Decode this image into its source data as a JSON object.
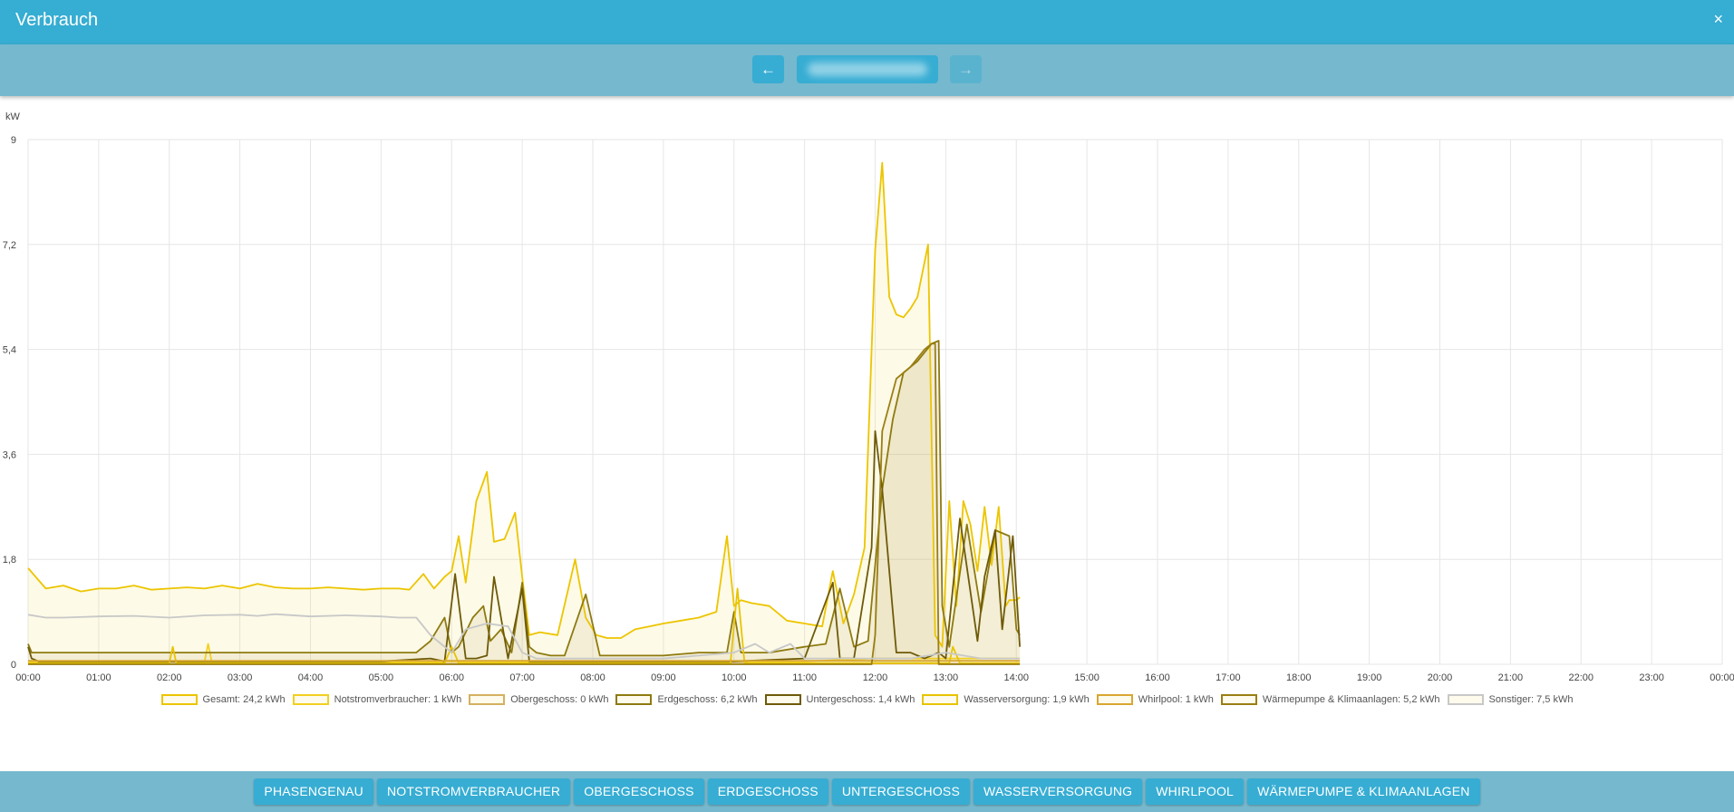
{
  "window": {
    "title": "Verbrauch",
    "close_glyph": "×"
  },
  "nav": {
    "prev_glyph": "←",
    "next_glyph": "→",
    "prev_icon": "arrow-left-icon",
    "next_icon": "arrow-right-icon",
    "date_value": ""
  },
  "chart_data": {
    "type": "area",
    "ylabel": "kW",
    "ylim": [
      0,
      9
    ],
    "yticks": [
      "0",
      "1,8",
      "3,6",
      "5,4",
      "7,2",
      "9"
    ],
    "xticks": [
      "00:00",
      "01:00",
      "02:00",
      "03:00",
      "04:00",
      "05:00",
      "06:00",
      "07:00",
      "08:00",
      "09:00",
      "10:00",
      "11:00",
      "12:00",
      "13:00",
      "14:00",
      "15:00",
      "16:00",
      "17:00",
      "18:00",
      "19:00",
      "20:00",
      "21:00",
      "22:00",
      "23:00",
      "00:00"
    ],
    "grid": true,
    "legend_position": "bottom",
    "series": [
      {
        "name": "Gesamt: 24,2 kWh",
        "color": "#ecc500",
        "fill": "rgba(245,225,120,0.18)",
        "x": [
          0,
          0.25,
          0.5,
          0.75,
          1,
          1.25,
          1.5,
          1.75,
          2,
          2.25,
          2.5,
          2.75,
          3,
          3.25,
          3.5,
          3.75,
          4,
          4.25,
          4.5,
          4.75,
          5,
          5.25,
          5.4,
          5.6,
          5.75,
          5.9,
          6.0,
          6.1,
          6.2,
          6.35,
          6.5,
          6.6,
          6.75,
          6.9,
          7.0,
          7.1,
          7.25,
          7.5,
          7.75,
          7.9,
          8.05,
          8.2,
          8.4,
          8.6,
          8.8,
          9.0,
          9.25,
          9.5,
          9.75,
          9.9,
          10.0,
          10.1,
          10.25,
          10.5,
          10.75,
          11.0,
          11.25,
          11.4,
          11.55,
          11.7,
          11.85,
          12.0,
          12.1,
          12.2,
          12.3,
          12.4,
          12.5,
          12.6,
          12.75,
          12.85,
          12.95,
          13.05,
          13.15,
          13.25,
          13.35,
          13.45,
          13.55,
          13.65,
          13.75,
          13.85,
          13.9,
          14.0,
          14.05
        ],
        "values": [
          1.65,
          1.3,
          1.35,
          1.25,
          1.3,
          1.3,
          1.35,
          1.28,
          1.3,
          1.32,
          1.3,
          1.35,
          1.3,
          1.38,
          1.32,
          1.3,
          1.3,
          1.32,
          1.3,
          1.28,
          1.3,
          1.3,
          1.28,
          1.55,
          1.3,
          1.5,
          1.6,
          2.2,
          1.4,
          2.8,
          3.3,
          2.1,
          2.15,
          2.6,
          1.5,
          0.5,
          0.55,
          0.5,
          1.8,
          0.8,
          0.5,
          0.45,
          0.45,
          0.6,
          0.65,
          0.7,
          0.75,
          0.8,
          0.9,
          2.2,
          1.0,
          1.1,
          1.05,
          1.0,
          0.75,
          0.7,
          0.65,
          1.6,
          0.7,
          1.2,
          2.0,
          7.1,
          8.6,
          6.3,
          6.0,
          5.95,
          6.1,
          6.3,
          7.2,
          0.5,
          0.3,
          2.8,
          1.0,
          2.8,
          2.4,
          1.6,
          2.7,
          1.7,
          2.7,
          1.0,
          1.1,
          1.1,
          1.15
        ]
      },
      {
        "name": "Notstromverbraucher: 1 kWh",
        "color": "#f2d020",
        "fill": "none",
        "x": [
          0,
          1,
          2,
          2.5,
          2.55,
          2.6,
          3,
          4,
          5,
          6,
          7,
          8,
          9,
          10,
          11,
          12,
          13,
          14,
          14.05
        ],
        "values": [
          0.05,
          0.05,
          0.05,
          0.05,
          0.35,
          0.05,
          0.05,
          0.05,
          0.05,
          0.05,
          0.05,
          0.05,
          0.05,
          0.05,
          0.05,
          0.1,
          0.1,
          0.1,
          0.1
        ]
      },
      {
        "name": "Obergeschoss: 0 kWh",
        "color": "#d4b060",
        "fill": "none",
        "x": [
          0,
          14.05
        ],
        "values": [
          0.01,
          0.01
        ]
      },
      {
        "name": "Erdgeschoss: 6,2 kWh",
        "color": "#8e7a10",
        "fill": "rgba(160,140,60,0.10)",
        "x": [
          0,
          0.05,
          0.2,
          1,
          2,
          3,
          4,
          5,
          5.5,
          5.7,
          5.9,
          6.0,
          6.1,
          6.3,
          6.45,
          6.55,
          6.7,
          6.85,
          7.0,
          7.1,
          7.2,
          7.4,
          7.6,
          7.9,
          8.1,
          8.3,
          8.6,
          9.0,
          9.5,
          9.9,
          10.0,
          10.1,
          10.5,
          11.0,
          11.3,
          11.5,
          11.7,
          11.9,
          12.0,
          12.1,
          12.25,
          12.4,
          12.6,
          12.8,
          12.9,
          12.95,
          13.05,
          13.3,
          13.5,
          13.7,
          13.9,
          14.0,
          14.05
        ],
        "values": [
          0.35,
          0.2,
          0.2,
          0.2,
          0.2,
          0.2,
          0.2,
          0.2,
          0.2,
          0.4,
          0.8,
          0.2,
          0.3,
          0.8,
          1.0,
          0.4,
          0.6,
          0.2,
          1.4,
          0.3,
          0.2,
          0.15,
          0.15,
          1.2,
          0.15,
          0.15,
          0.15,
          0.15,
          0.2,
          0.2,
          0.9,
          0.2,
          0.2,
          0.3,
          0.35,
          1.3,
          0.3,
          0.4,
          1.7,
          3.0,
          4.2,
          5.0,
          5.2,
          5.5,
          5.55,
          1.0,
          0.3,
          2.4,
          0.9,
          2.3,
          2.2,
          0.6,
          0.5
        ]
      },
      {
        "name": "Untergeschoss: 1,4 kWh",
        "color": "#6e5a08",
        "fill": "none",
        "x": [
          0,
          0.05,
          0.15,
          1,
          2,
          3,
          4,
          5,
          5.7,
          5.9,
          6.05,
          6.2,
          6.35,
          6.5,
          6.6,
          6.8,
          7.0,
          7.1,
          7.3,
          8,
          9,
          10,
          11,
          11.4,
          11.5,
          11.7,
          11.95,
          12.0,
          12.1,
          12.3,
          12.5,
          12.7,
          12.9,
          13.0,
          13.2,
          13.45,
          13.55,
          13.7,
          13.8,
          13.95,
          14.05
        ],
        "values": [
          0.3,
          0.1,
          0.05,
          0.05,
          0.05,
          0.05,
          0.05,
          0.05,
          0.1,
          0.05,
          1.55,
          0.1,
          0.1,
          0.15,
          1.5,
          0.1,
          1.3,
          0.05,
          0.05,
          0.05,
          0.05,
          0.05,
          0.1,
          1.4,
          0.1,
          0.1,
          2.0,
          4.0,
          3.0,
          0.2,
          0.2,
          0.1,
          0.2,
          0.1,
          2.5,
          0.4,
          1.5,
          2.3,
          0.6,
          2.2,
          0.3
        ]
      },
      {
        "name": "Wasserversorgung: 1,9 kWh",
        "color": "#e8c400",
        "fill": "none",
        "x": [
          0,
          2,
          2.05,
          2.1,
          4,
          5.9,
          6.0,
          6.1,
          8,
          9.95,
          10.05,
          10.15,
          12,
          13.05,
          13.1,
          13.2,
          14.05
        ],
        "values": [
          0.02,
          0.02,
          0.3,
          0.02,
          0.02,
          0.02,
          0.3,
          0.02,
          0.02,
          0.02,
          1.3,
          0.02,
          0.02,
          0.02,
          0.3,
          0.02,
          0.02
        ]
      },
      {
        "name": "Whirlpool: 1 kWh",
        "color": "#d9a630",
        "fill": "none",
        "x": [
          0,
          3,
          6,
          9,
          12,
          14.05
        ],
        "values": [
          0.06,
          0.06,
          0.06,
          0.06,
          0.06,
          0.06
        ]
      },
      {
        "name": "Wärmepumpe & Klimaanlagen: 5,2 kWh",
        "color": "#9a7e12",
        "fill": "rgba(200,180,100,0.10)",
        "x": [
          0,
          11.95,
          12.0,
          12.1,
          12.3,
          12.5,
          12.7,
          12.8,
          12.85,
          12.9,
          14.05
        ],
        "values": [
          0,
          0,
          0.5,
          4.0,
          4.9,
          5.1,
          5.4,
          5.5,
          5.5,
          0,
          0
        ]
      },
      {
        "name": "Sonstiger: 7,5 kWh",
        "color": "#c8c8c8",
        "fill": "none",
        "x": [
          0,
          0.25,
          0.5,
          1,
          1.5,
          2,
          2.5,
          3,
          3.25,
          3.5,
          4,
          4.5,
          5,
          5.25,
          5.5,
          5.7,
          5.85,
          6.0,
          6.2,
          6.5,
          6.8,
          7.0,
          7.2,
          8,
          9,
          9.5,
          10,
          10.3,
          10.5,
          10.8,
          11,
          11.5,
          12,
          12.5,
          13,
          13.5,
          14,
          14.05
        ],
        "values": [
          0.85,
          0.8,
          0.8,
          0.82,
          0.83,
          0.8,
          0.84,
          0.85,
          0.83,
          0.86,
          0.82,
          0.84,
          0.82,
          0.8,
          0.8,
          0.5,
          0.35,
          0.2,
          0.6,
          0.7,
          0.65,
          0.2,
          0.1,
          0.1,
          0.1,
          0.15,
          0.2,
          0.35,
          0.2,
          0.35,
          0.1,
          0.1,
          0.1,
          0.1,
          0.2,
          0.1,
          0.1,
          0.1
        ]
      }
    ]
  },
  "categories": [
    "PHASENGENAU",
    "NOTSTROMVERBRAUCHER",
    "OBERGESCHOSS",
    "ERDGESCHOSS",
    "UNTERGESCHOSS",
    "WASSERVERSORGUNG",
    "WHIRLPOOL",
    "WÄRMEPUMPE & KLIMAANLAGEN"
  ]
}
